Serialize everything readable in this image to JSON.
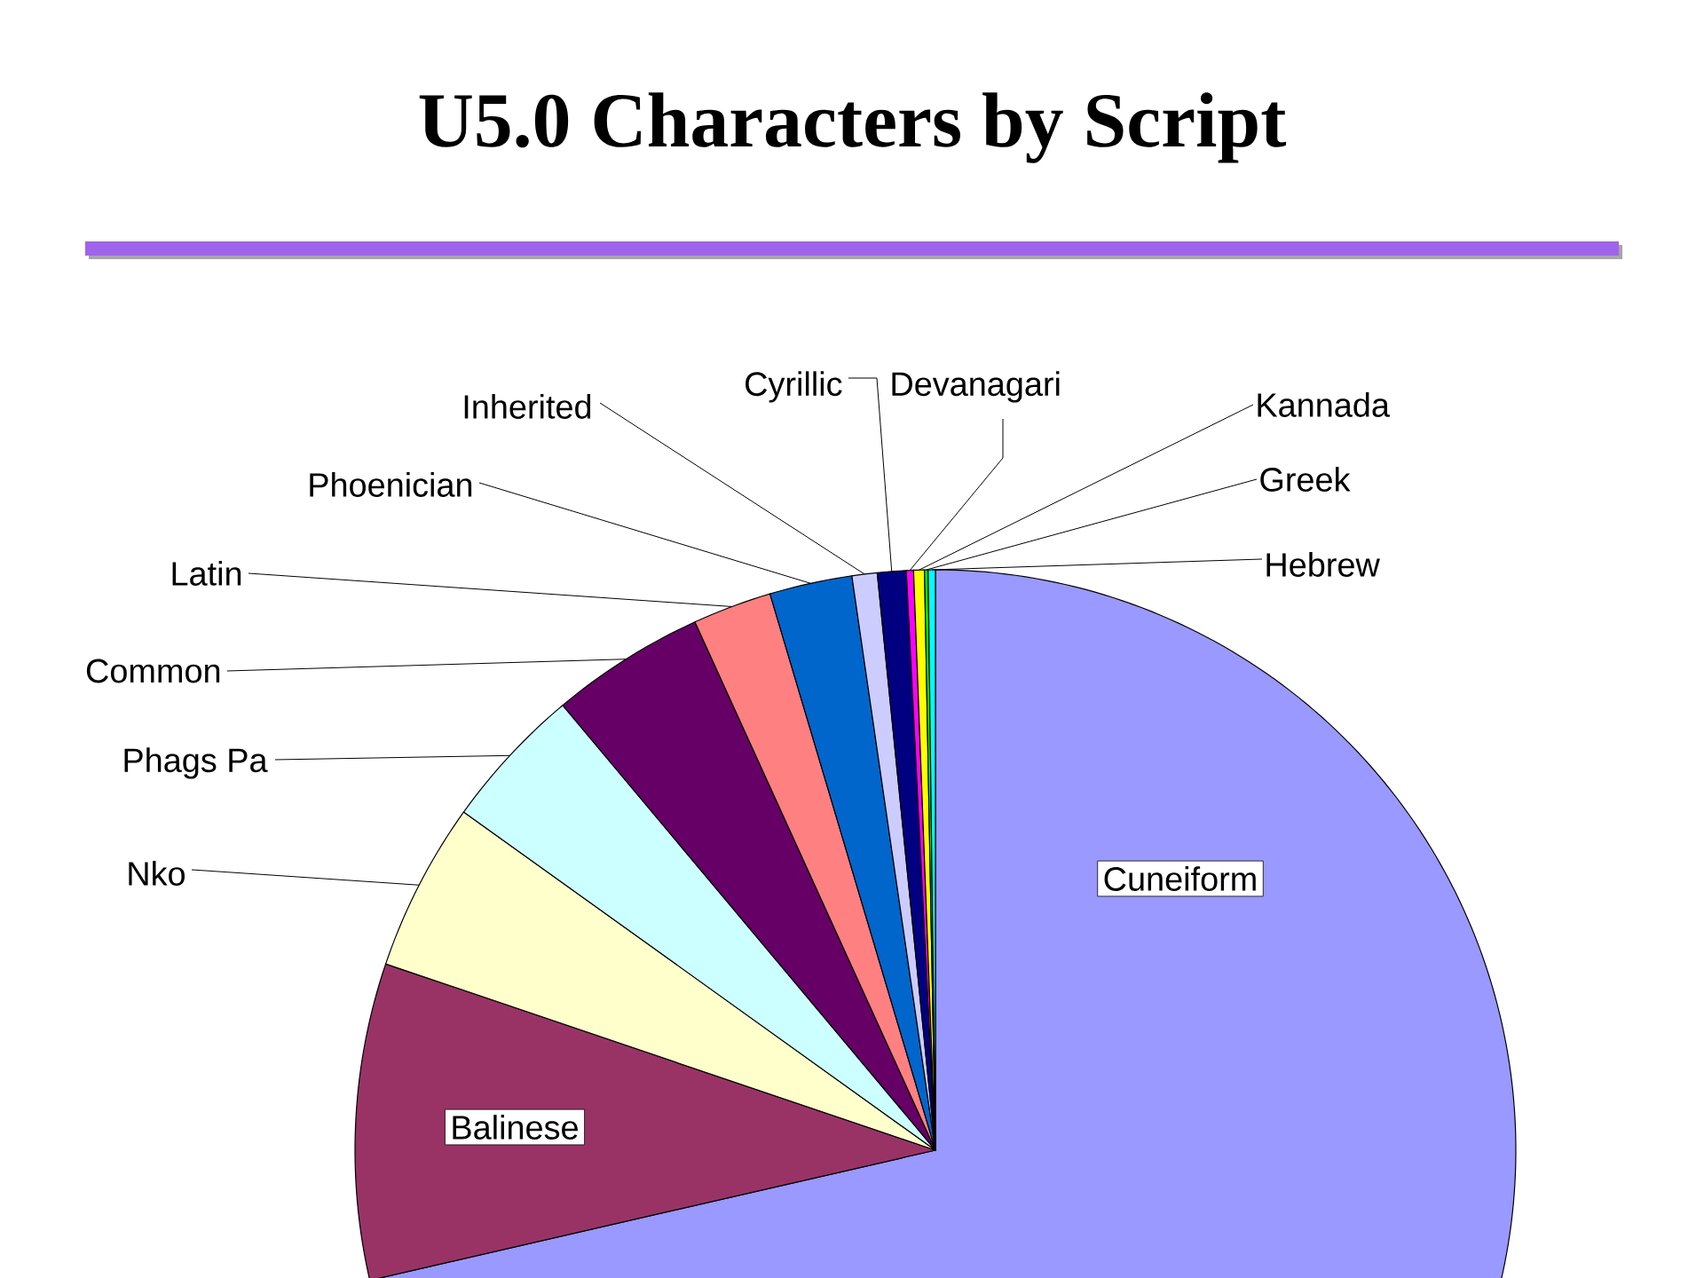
{
  "chart_data": {
    "type": "pie",
    "title": "U5.0 Characters by Script",
    "categories": [
      "Cuneiform",
      "Balinese",
      "Nko",
      "Phags Pa",
      "Common",
      "Latin",
      "Phoenician",
      "Inherited",
      "Cyrillic",
      "Devanagari",
      "Kannada",
      "Greek",
      "Hebrew"
    ],
    "values": [
      71.4,
      8.8,
      4.7,
      4.0,
      4.3,
      2.2,
      2.3,
      0.7,
      0.8,
      0.2,
      0.3,
      0.1,
      0.2
    ],
    "colors": [
      "#9999ff",
      "#993366",
      "#ffffcc",
      "#ccffff",
      "#660066",
      "#ff8080",
      "#0066cc",
      "#ccccff",
      "#000080",
      "#ff00ff",
      "#ffff00",
      "#00ff00",
      "#00ffff"
    ]
  }
}
